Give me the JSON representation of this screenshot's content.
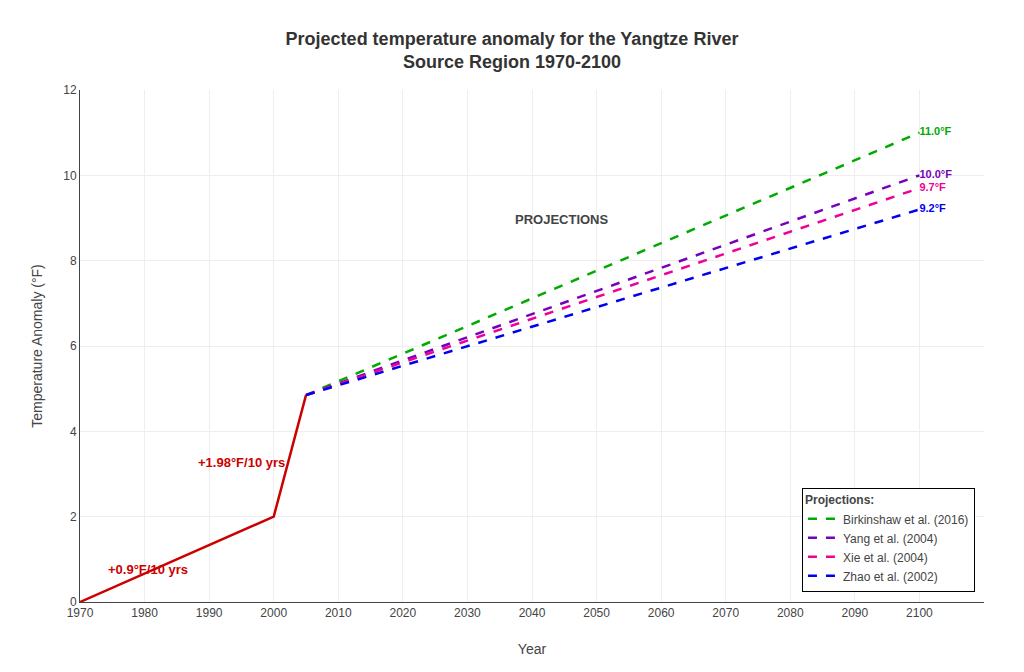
{
  "chart_data": {
    "type": "line",
    "title": "Projected temperature anomaly for the Yangtze River\nSource Region 1970-2100",
    "x_label": "Year",
    "y_label": "Temperature Anomaly (°F)",
    "xlim": [
      1970,
      2110
    ],
    "ylim": [
      0,
      12
    ],
    "xticks": [
      1970,
      1980,
      1990,
      2000,
      2010,
      2020,
      2030,
      2040,
      2050,
      2060,
      2070,
      2080,
      2090,
      2100
    ],
    "yticks": [
      0,
      2,
      4,
      6,
      8,
      10,
      12
    ],
    "grid": true,
    "legend": "lower right",
    "legend_title": "Projections:",
    "series": [
      {
        "color": "#cc0000",
        "line_style": "solid",
        "x": [
          1970,
          2000,
          2005
        ],
        "values": [
          0.0,
          2.0,
          4.85
        ]
      },
      {
        "name": "Birkinshaw et al. (2016)",
        "color": "#00aa00",
        "line_style": "dashed",
        "x": [
          2005,
          2100
        ],
        "values": [
          4.85,
          11.0
        ],
        "value_labels": [
          null,
          "11.0°F"
        ]
      },
      {
        "name": "Yang et al. (2004)",
        "color": "#7700bb",
        "line_style": "dashed",
        "x": [
          2005,
          2100
        ],
        "values": [
          4.85,
          10.0
        ],
        "value_labels": [
          null,
          "10.0°F"
        ]
      },
      {
        "name": "Xie et al. (2004)",
        "color": "#ee0099",
        "line_style": "dashed",
        "x": [
          2005,
          2100
        ],
        "values": [
          4.85,
          9.7
        ],
        "value_labels": [
          null,
          "9.7°F"
        ]
      },
      {
        "name": "Zhao et al. (2002)",
        "color": "#0000ee",
        "line_style": "dashed",
        "x": [
          2005,
          2100
        ],
        "values": [
          4.85,
          9.2
        ],
        "value_labels": [
          null,
          "9.2°F"
        ]
      }
    ],
    "annotations": [
      {
        "text": "+0.9°F/10 yrs",
        "x": 1974,
        "y": 0.55,
        "color": "#cc0000"
      },
      {
        "text": "+1.98°F/10 yrs",
        "x": 1988,
        "y": 3.05,
        "color": "#cc0000"
      },
      {
        "text": "PROJECTIONS",
        "x": 2037,
        "y": 8.75
      }
    ]
  }
}
